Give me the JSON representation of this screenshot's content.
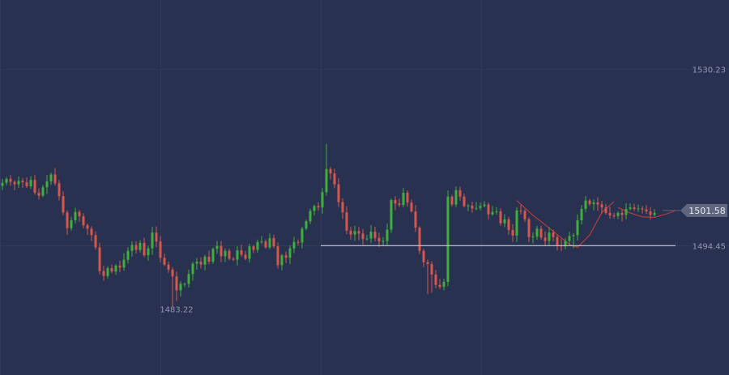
{
  "theme": {
    "background": "#293151",
    "grid": "#323b5c",
    "up": "#3fae3b",
    "down": "#d8574c",
    "level_line": "#c9cdd8",
    "pattern_line": "#d33a3a",
    "label_text": "#8f97b3",
    "current_badge": "#5e667f"
  },
  "chart_data": {
    "type": "candlestick",
    "price_labels": {
      "high_level": "1530.23",
      "support_level": "1494.45",
      "low_marker": "1483.22",
      "current": "1501.58"
    },
    "levels": {
      "high": 1530.23,
      "support": 1494.45,
      "low": 1483.22,
      "current": 1501.58
    },
    "ylim": [
      1471,
      1542
    ],
    "grid": true,
    "closes": [
      1507.2,
      1508.0,
      1507.4,
      1506.9,
      1507.6,
      1507.3,
      1506.5,
      1507.8,
      1505.2,
      1504.6,
      1506.3,
      1507.5,
      1508.9,
      1507.1,
      1504.5,
      1501.2,
      1498.0,
      1499.6,
      1501.3,
      1500.4,
      1498.6,
      1497.9,
      1496.6,
      1494.1,
      1489.3,
      1488.3,
      1489.9,
      1489.2,
      1490.4,
      1490.0,
      1491.6,
      1493.4,
      1494.6,
      1493.6,
      1495.0,
      1492.5,
      1493.9,
      1497.1,
      1495.3,
      1492.0,
      1490.6,
      1489.6,
      1488.2,
      1485.4,
      1486.7,
      1486.7,
      1488.7,
      1490.8,
      1491.2,
      1490.6,
      1492.2,
      1491.2,
      1493.8,
      1494.4,
      1492.3,
      1493.4,
      1491.8,
      1491.6,
      1493.5,
      1492.6,
      1491.8,
      1494.3,
      1493.6,
      1495.2,
      1495.3,
      1494.1,
      1496.0,
      1494.3,
      1490.5,
      1492.5,
      1492.0,
      1493.9,
      1495.2,
      1495.1,
      1497.9,
      1499.4,
      1501.5,
      1502.5,
      1502.2,
      1505.3,
      1510.0,
      1509.1,
      1506.9,
      1503.3,
      1501.2,
      1497.5,
      1496.7,
      1497.4,
      1496.9,
      1495.8,
      1495.9,
      1497.3,
      1496.0,
      1495.3,
      1495.4,
      1497.7,
      1503.7,
      1503.0,
      1502.7,
      1505.2,
      1503.2,
      1501.4,
      1498.1,
      1493.4,
      1491.1,
      1490.7,
      1488.6,
      1486.5,
      1486.1,
      1487.1,
      1504.4,
      1502.8,
      1505.7,
      1504.4,
      1502.5,
      1502.6,
      1502.0,
      1502.1,
      1502.5,
      1502.8,
      1500.8,
      1501.3,
      1501.4,
      1499.0,
      1499.8,
      1497.6,
      1496.5,
      1501.6,
      1501.5,
      1499.8,
      1496.2,
      1496.3,
      1497.9,
      1496.1,
      1495.4,
      1497.1,
      1496.2,
      1494.5,
      1494.3,
      1495.4,
      1496.4,
      1496.6,
      1499.6,
      1501.9,
      1503.6,
      1502.9,
      1503.2,
      1502.8,
      1502.2,
      1501.1,
      1500.6,
      1500.5,
      1501.1,
      1500.7,
      1501.9,
      1502.2,
      1501.9,
      1502.0,
      1501.8,
      1501.4,
      1500.7,
      1501.1
    ]
  }
}
